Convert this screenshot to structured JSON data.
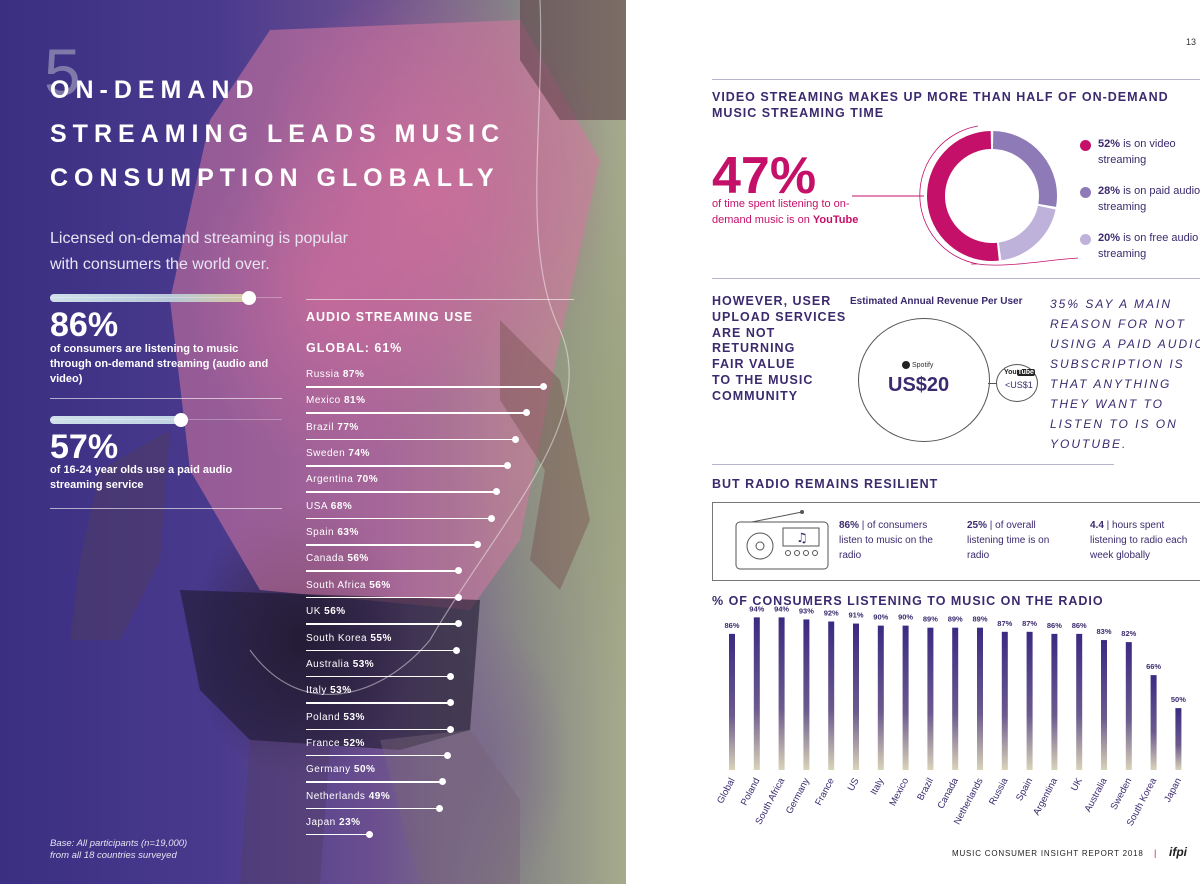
{
  "left": {
    "section_number": "5",
    "headline": [
      "ON-DEMAND",
      "STREAMING LEADS MUSIC",
      "CONSUMPTION GLOBALLY"
    ],
    "intro": "Licensed on-demand streaming is popular with consumers the world over.",
    "stat1": {
      "value": "86%",
      "text": "of consumers are listening to music through on-demand streaming (audio and video)",
      "fill": 0.86
    },
    "stat2": {
      "value": "57%",
      "text": "of 16-24 year olds use a paid audio streaming service",
      "fill": 0.57
    },
    "audio_title": "AUDIO STREAMING USE",
    "audio_global": "GLOBAL: 61%",
    "countries": [
      {
        "name": "Russia",
        "pct": "87%",
        "value": 87
      },
      {
        "name": "Mexico",
        "pct": "81%",
        "value": 81
      },
      {
        "name": "Brazil",
        "pct": "77%",
        "value": 77
      },
      {
        "name": "Sweden",
        "pct": "74%",
        "value": 74
      },
      {
        "name": "Argentina",
        "pct": "70%",
        "value": 70
      },
      {
        "name": "USA",
        "pct": "68%",
        "value": 68
      },
      {
        "name": "Spain",
        "pct": "63%",
        "value": 63
      },
      {
        "name": "Canada",
        "pct": "56%",
        "value": 56
      },
      {
        "name": "South Africa",
        "pct": "56%",
        "value": 56
      },
      {
        "name": "UK",
        "pct": "56%",
        "value": 56
      },
      {
        "name": "South Korea",
        "pct": "55%",
        "value": 55
      },
      {
        "name": "Australia",
        "pct": "53%",
        "value": 53
      },
      {
        "name": "Italy",
        "pct": "53%",
        "value": 53
      },
      {
        "name": "Poland",
        "pct": "53%",
        "value": 53
      },
      {
        "name": "France",
        "pct": "52%",
        "value": 52
      },
      {
        "name": "Germany",
        "pct": "50%",
        "value": 50
      },
      {
        "name": "Netherlands",
        "pct": "49%",
        "value": 49
      },
      {
        "name": "Japan",
        "pct": "23%",
        "value": 23
      }
    ],
    "base_note": [
      "Base: All participants (n=19,000)",
      "from all 18 countries surveyed"
    ]
  },
  "right": {
    "page_number": "13",
    "video_title": [
      "VIDEO STREAMING MAKES UP MORE THAN HALF OF ON-DEMAND",
      "MUSIC STREAMING TIME"
    ],
    "big_stat": "47%",
    "big_stat_text_1": "of time spent listening to on-demand music is on ",
    "big_stat_text_bold": "YouTube",
    "donut": {
      "colors": {
        "video": "#c5106a",
        "paid": "#8f7ab8",
        "free": "#bfb2da"
      },
      "legend": [
        {
          "pct": "52%",
          "text": " is on video streaming",
          "color": "#c5106a"
        },
        {
          "pct": "28%",
          "text": " is on paid audio streaming",
          "color": "#8f7ab8"
        },
        {
          "pct": "20%",
          "text": " is on free audio streaming",
          "color": "#bfb2da"
        }
      ]
    },
    "upload_text": [
      "HOWEVER, USER",
      "UPLOAD SERVICES",
      "ARE NOT",
      "RETURNING",
      "FAIR VALUE",
      "TO THE MUSIC",
      "COMMUNITY"
    ],
    "revenue_title": "Estimated Annual Revenue Per User",
    "spotify_label": "Spotify",
    "spotify_value": "US$20",
    "youtube_label_a": "You",
    "youtube_label_b": "Tube",
    "youtube_value": "<US$1",
    "quote": "35% SAY A MAIN REASON FOR NOT USING A PAID AUDIO SUBSCRIPTION IS THAT ANYTHING THEY WANT TO LISTEN TO IS ON YOUTUBE.",
    "radio_title": "BUT RADIO REMAINS RESILIENT",
    "radio_stats": [
      {
        "bold": "86%",
        "text": " | of consumers listen to music on the radio"
      },
      {
        "bold": "25%",
        "text": " | of overall listening time is on radio"
      },
      {
        "bold": "4.4",
        "text": " | hours spent listening to radio each week globally"
      }
    ],
    "chart_title": "% OF CONSUMERS LISTENING TO MUSIC ON THE RADIO",
    "footer": "MUSIC CONSUMER INSIGHT REPORT 2018",
    "footer_sep": "|",
    "logo": "ifpi"
  },
  "chart_data": {
    "type": "bar",
    "title": "% OF CONSUMERS LISTENING TO MUSIC ON THE RADIO",
    "categories": [
      "Global",
      "Poland",
      "South Africa",
      "Germany",
      "France",
      "US",
      "Italy",
      "Mexico",
      "Brazil",
      "Canada",
      "Netherlands",
      "Russia",
      "Spain",
      "Argentina",
      "UK",
      "Australia",
      "Sweden",
      "South Korea",
      "Japan"
    ],
    "values": [
      86,
      94,
      94,
      93,
      92,
      91,
      90,
      90,
      89,
      89,
      89,
      87,
      87,
      86,
      86,
      83,
      82,
      66,
      50
    ],
    "labels": [
      "86%",
      "94%",
      "94%",
      "93%",
      "92%",
      "91%",
      "90%",
      "90%",
      "89%",
      "89%",
      "89%",
      "87%",
      "87%",
      "86%",
      "86%",
      "83%",
      "82%",
      "66%",
      "50%"
    ],
    "ylim": [
      0,
      100
    ],
    "grid": false,
    "colors": {
      "top": "#3b2a82",
      "bottom": "#d9d3b8"
    }
  }
}
